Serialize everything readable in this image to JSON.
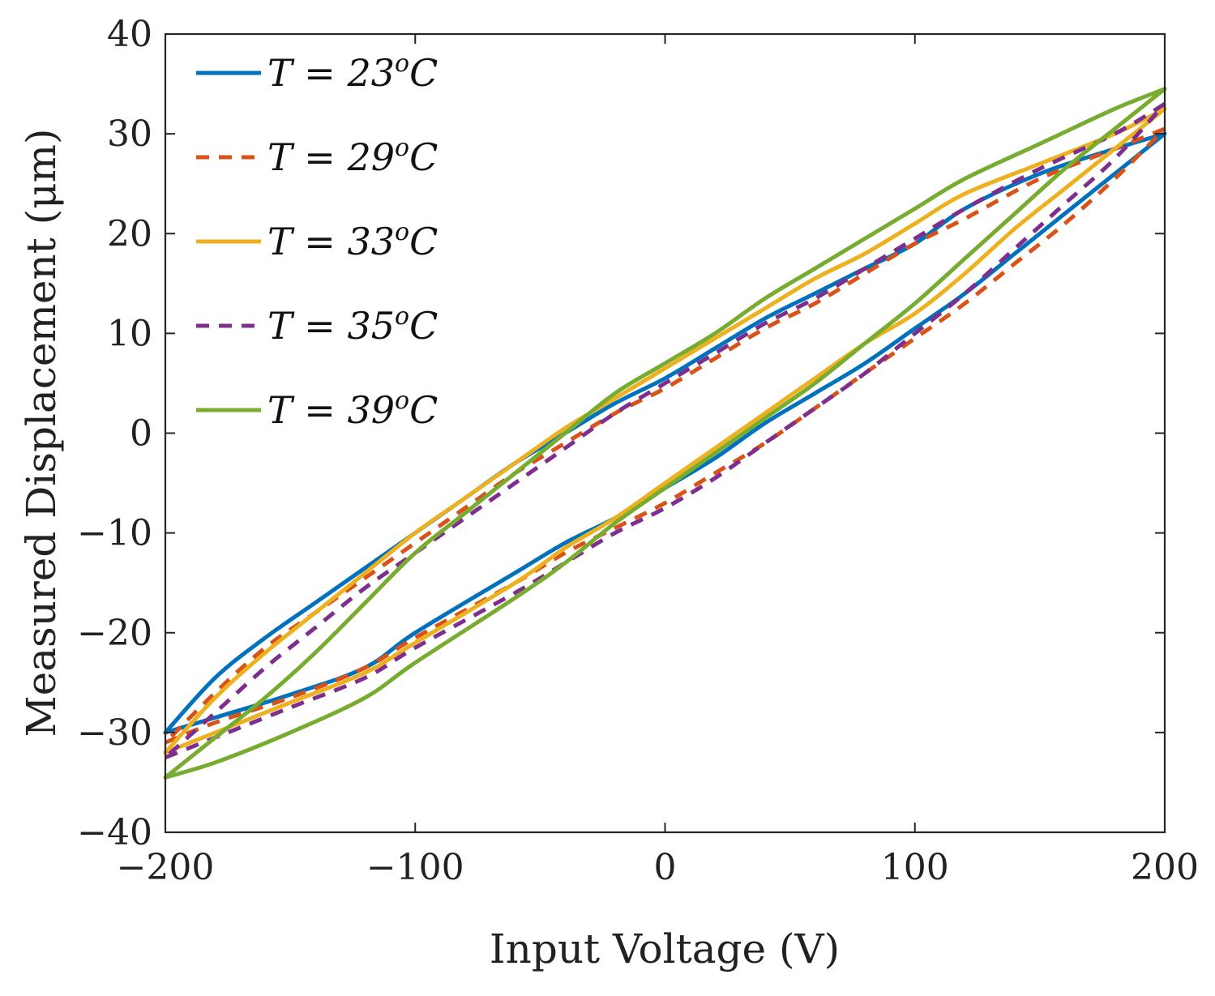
{
  "chart_data": {
    "type": "line",
    "title": "",
    "xlabel": "Input Voltage (V)",
    "ylabel": "Measured Displacement (μm)",
    "xlim": [
      -200,
      200
    ],
    "ylim": [
      -40,
      40
    ],
    "x_ticks": [
      -200,
      -100,
      0,
      100,
      200
    ],
    "x_tick_labels": [
      "−200",
      "−100",
      "0",
      "100",
      "200"
    ],
    "y_ticks": [
      -40,
      -30,
      -20,
      -10,
      0,
      10,
      20,
      30,
      40
    ],
    "y_tick_labels": [
      "−40",
      "−30",
      "−20",
      "−10",
      "0",
      "10",
      "20",
      "30",
      "40"
    ],
    "grid": false,
    "legend_position": "top-left",
    "series": [
      {
        "name": "T = 23°C",
        "legend_label": {
          "pre": "T = 23",
          "sup": "o",
          "post": "C"
        },
        "color": "#0072BD",
        "dash": "solid",
        "ascending": [
          [
            -200,
            -30
          ],
          [
            -180,
            -28.5
          ],
          [
            -150,
            -26.2
          ],
          [
            -120,
            -23.5
          ],
          [
            -100,
            -20
          ],
          [
            -60,
            -14
          ],
          [
            -40,
            -11
          ],
          [
            -20,
            -8.5
          ],
          [
            0,
            -5.5
          ],
          [
            20,
            -2.5
          ],
          [
            40,
            1
          ],
          [
            60,
            4
          ],
          [
            80,
            7
          ],
          [
            100,
            10.5
          ],
          [
            120,
            14
          ],
          [
            140,
            18
          ],
          [
            160,
            22
          ],
          [
            180,
            26
          ],
          [
            200,
            30
          ]
        ],
        "descending": [
          [
            200,
            30
          ],
          [
            180,
            28.5
          ],
          [
            150,
            26
          ],
          [
            120,
            22.5
          ],
          [
            100,
            19
          ],
          [
            80,
            16.5
          ],
          [
            60,
            14
          ],
          [
            40,
            11.5
          ],
          [
            20,
            8.5
          ],
          [
            0,
            5.5
          ],
          [
            -20,
            3
          ],
          [
            -40,
            0
          ],
          [
            -60,
            -3
          ],
          [
            -80,
            -6.5
          ],
          [
            -100,
            -10
          ],
          [
            -120,
            -13.5
          ],
          [
            -140,
            -17
          ],
          [
            -160,
            -20.5
          ],
          [
            -180,
            -24.5
          ],
          [
            -200,
            -30
          ]
        ]
      },
      {
        "name": "T = 29°C",
        "legend_label": {
          "pre": "T = 29",
          "sup": "o",
          "post": "C"
        },
        "color": "#D95319",
        "dash": "dashed",
        "ascending": [
          [
            -200,
            -31
          ],
          [
            -180,
            -29
          ],
          [
            -150,
            -26.5
          ],
          [
            -120,
            -23.5
          ],
          [
            -100,
            -20.5
          ],
          [
            -60,
            -15
          ],
          [
            -40,
            -12
          ],
          [
            -20,
            -9.5
          ],
          [
            0,
            -7
          ],
          [
            20,
            -4
          ],
          [
            40,
            -1
          ],
          [
            60,
            2.5
          ],
          [
            80,
            6
          ],
          [
            100,
            9.5
          ],
          [
            120,
            13
          ],
          [
            140,
            17
          ],
          [
            160,
            21
          ],
          [
            180,
            25.5
          ],
          [
            200,
            30.5
          ]
        ],
        "descending": [
          [
            200,
            30.5
          ],
          [
            180,
            28.5
          ],
          [
            150,
            25.5
          ],
          [
            120,
            21.5
          ],
          [
            100,
            19
          ],
          [
            80,
            16
          ],
          [
            60,
            13
          ],
          [
            40,
            10.5
          ],
          [
            20,
            7.5
          ],
          [
            0,
            4.5
          ],
          [
            -20,
            2
          ],
          [
            -40,
            -1
          ],
          [
            -60,
            -4
          ],
          [
            -80,
            -7.5
          ],
          [
            -100,
            -11
          ],
          [
            -120,
            -14.5
          ],
          [
            -140,
            -18
          ],
          [
            -160,
            -21.5
          ],
          [
            -180,
            -26
          ],
          [
            -200,
            -31
          ]
        ]
      },
      {
        "name": "T = 33°C",
        "legend_label": {
          "pre": "T = 33",
          "sup": "o",
          "post": "C"
        },
        "color": "#EDB120",
        "dash": "solid",
        "ascending": [
          [
            -200,
            -32
          ],
          [
            -180,
            -30
          ],
          [
            -150,
            -27
          ],
          [
            -120,
            -24
          ],
          [
            -100,
            -21
          ],
          [
            -60,
            -15
          ],
          [
            -40,
            -11.5
          ],
          [
            -20,
            -8.5
          ],
          [
            0,
            -5
          ],
          [
            20,
            -1.5
          ],
          [
            40,
            2
          ],
          [
            60,
            5.5
          ],
          [
            80,
            9
          ],
          [
            100,
            12
          ],
          [
            120,
            16
          ],
          [
            140,
            20.5
          ],
          [
            160,
            24.5
          ],
          [
            180,
            28.5
          ],
          [
            200,
            32.5
          ]
        ],
        "descending": [
          [
            200,
            32.5
          ],
          [
            180,
            30
          ],
          [
            150,
            27
          ],
          [
            120,
            24
          ],
          [
            100,
            21
          ],
          [
            80,
            18
          ],
          [
            60,
            15.5
          ],
          [
            40,
            12.5
          ],
          [
            20,
            9.5
          ],
          [
            0,
            6.5
          ],
          [
            -20,
            3.5
          ],
          [
            -40,
            0.5
          ],
          [
            -60,
            -3
          ],
          [
            -80,
            -6.5
          ],
          [
            -100,
            -10
          ],
          [
            -120,
            -14
          ],
          [
            -140,
            -18
          ],
          [
            -160,
            -22
          ],
          [
            -180,
            -26.5
          ],
          [
            -200,
            -32
          ]
        ]
      },
      {
        "name": "T = 35°C",
        "legend_label": {
          "pre": "T = 35",
          "sup": "o",
          "post": "C"
        },
        "color": "#7E2F8E",
        "dash": "dashed",
        "ascending": [
          [
            -200,
            -32.5
          ],
          [
            -180,
            -30.5
          ],
          [
            -150,
            -27.5
          ],
          [
            -120,
            -24.5
          ],
          [
            -100,
            -21.5
          ],
          [
            -60,
            -16
          ],
          [
            -40,
            -13
          ],
          [
            -20,
            -10
          ],
          [
            0,
            -7.5
          ],
          [
            20,
            -4.5
          ],
          [
            40,
            -1
          ],
          [
            60,
            2.5
          ],
          [
            80,
            6
          ],
          [
            100,
            10
          ],
          [
            120,
            14
          ],
          [
            140,
            18.5
          ],
          [
            160,
            23
          ],
          [
            180,
            27.5
          ],
          [
            200,
            33
          ]
        ],
        "descending": [
          [
            200,
            33
          ],
          [
            180,
            30
          ],
          [
            150,
            26.5
          ],
          [
            120,
            22.5
          ],
          [
            100,
            19.5
          ],
          [
            80,
            16.5
          ],
          [
            60,
            13.5
          ],
          [
            40,
            11
          ],
          [
            20,
            8
          ],
          [
            0,
            5
          ],
          [
            -20,
            2
          ],
          [
            -40,
            -1.5
          ],
          [
            -60,
            -5
          ],
          [
            -80,
            -8.5
          ],
          [
            -100,
            -12
          ],
          [
            -120,
            -15.5
          ],
          [
            -140,
            -19.5
          ],
          [
            -160,
            -23.5
          ],
          [
            -180,
            -28
          ],
          [
            -200,
            -32.5
          ]
        ]
      },
      {
        "name": "T = 39°C",
        "legend_label": {
          "pre": "T = 39",
          "sup": "o",
          "post": "C"
        },
        "color": "#77AC30",
        "dash": "solid",
        "ascending": [
          [
            -200,
            -34.5
          ],
          [
            -180,
            -33
          ],
          [
            -150,
            -30
          ],
          [
            -120,
            -26.5
          ],
          [
            -100,
            -23
          ],
          [
            -60,
            -16.5
          ],
          [
            -40,
            -13
          ],
          [
            -20,
            -9
          ],
          [
            0,
            -5.5
          ],
          [
            20,
            -2
          ],
          [
            40,
            1.5
          ],
          [
            60,
            5
          ],
          [
            80,
            9
          ],
          [
            100,
            13
          ],
          [
            120,
            17.5
          ],
          [
            140,
            22
          ],
          [
            160,
            26.5
          ],
          [
            180,
            30.5
          ],
          [
            200,
            34.5
          ]
        ],
        "descending": [
          [
            200,
            34.5
          ],
          [
            180,
            32.5
          ],
          [
            150,
            29
          ],
          [
            120,
            25.5
          ],
          [
            100,
            22.5
          ],
          [
            80,
            19.5
          ],
          [
            60,
            16.5
          ],
          [
            40,
            13.5
          ],
          [
            20,
            10
          ],
          [
            0,
            7
          ],
          [
            -20,
            4
          ],
          [
            -40,
            0
          ],
          [
            -60,
            -4
          ],
          [
            -80,
            -8
          ],
          [
            -100,
            -12
          ],
          [
            -120,
            -17
          ],
          [
            -140,
            -22
          ],
          [
            -160,
            -26.5
          ],
          [
            -180,
            -30.5
          ],
          [
            -200,
            -34.5
          ]
        ]
      }
    ]
  }
}
